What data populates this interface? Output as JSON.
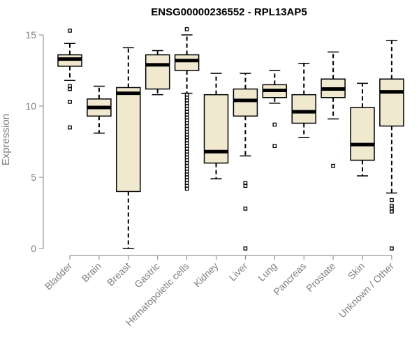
{
  "chart_data": {
    "type": "box",
    "title": "ENSG00000236552 - RPL13AP5",
    "xlabel": "",
    "ylabel": "Expression",
    "ylim": [
      0,
      15.5
    ],
    "yticks": [
      0,
      5,
      10,
      15
    ],
    "grid": false,
    "box_fill": "#f0e9d0",
    "median_color": "#000000",
    "axis_color": "#808080",
    "categories": [
      "Bladder",
      "Brain",
      "Breast",
      "Gastric",
      "Hematopoietic cells",
      "Kidney",
      "Liver",
      "Lung",
      "Pancreas",
      "Prostate",
      "Skin",
      "Unknown / Other"
    ],
    "boxes": [
      {
        "category": "Bladder",
        "whisker_low": 11.8,
        "q1": 12.8,
        "median": 13.3,
        "q3": 13.6,
        "whisker_high": 14.4,
        "outliers": [
          15.3,
          11.4,
          11.2,
          10.3,
          8.5
        ]
      },
      {
        "category": "Brain",
        "whisker_low": 8.1,
        "q1": 9.3,
        "median": 9.9,
        "q3": 10.5,
        "whisker_high": 11.4,
        "outliers": []
      },
      {
        "category": "Breast",
        "whisker_low": 0.0,
        "q1": 4.0,
        "median": 10.9,
        "q3": 11.3,
        "whisker_high": 14.1,
        "outliers": []
      },
      {
        "category": "Gastric",
        "whisker_low": 10.8,
        "q1": 11.2,
        "median": 12.9,
        "q3": 13.6,
        "whisker_high": 13.9,
        "outliers": []
      },
      {
        "category": "Hematopoietic cells",
        "whisker_low": 10.9,
        "q1": 12.5,
        "median": 13.2,
        "q3": 13.6,
        "whisker_high": 15.0,
        "outliers": [
          15.4,
          10.8,
          10.6,
          10.4,
          10.2,
          10.0,
          9.8,
          9.6,
          9.4,
          9.2,
          9.0,
          8.8,
          8.6,
          8.4,
          8.2,
          8.0,
          7.8,
          7.6,
          7.4,
          7.2,
          7.0,
          6.8,
          6.6,
          6.4,
          6.2,
          6.0,
          5.8,
          5.6,
          5.4,
          5.2,
          5.0,
          4.8,
          4.6,
          4.4,
          4.2
        ]
      },
      {
        "category": "Kidney",
        "whisker_low": 4.9,
        "q1": 6.0,
        "median": 6.8,
        "q3": 10.8,
        "whisker_high": 12.3,
        "outliers": []
      },
      {
        "category": "Liver",
        "whisker_low": 6.5,
        "q1": 9.3,
        "median": 10.4,
        "q3": 11.2,
        "whisker_high": 12.3,
        "outliers": [
          4.6,
          4.4,
          2.8,
          0.0
        ]
      },
      {
        "category": "Lung",
        "whisker_low": 10.2,
        "q1": 10.6,
        "median": 11.1,
        "q3": 11.5,
        "whisker_high": 12.5,
        "outliers": [
          8.7,
          7.2
        ]
      },
      {
        "category": "Pancreas",
        "whisker_low": 7.8,
        "q1": 8.8,
        "median": 9.6,
        "q3": 10.8,
        "whisker_high": 13.0,
        "outliers": []
      },
      {
        "category": "Prostate",
        "whisker_low": 9.1,
        "q1": 10.6,
        "median": 11.2,
        "q3": 11.9,
        "whisker_high": 13.8,
        "outliers": [
          5.8
        ]
      },
      {
        "category": "Skin",
        "whisker_low": 5.1,
        "q1": 6.2,
        "median": 7.3,
        "q3": 9.9,
        "whisker_high": 11.6,
        "outliers": []
      },
      {
        "category": "Unknown / Other",
        "whisker_low": 3.9,
        "q1": 8.6,
        "median": 11.0,
        "q3": 11.9,
        "whisker_high": 14.6,
        "outliers": [
          3.4,
          3.0,
          2.8,
          2.6,
          0.0
        ]
      }
    ]
  }
}
